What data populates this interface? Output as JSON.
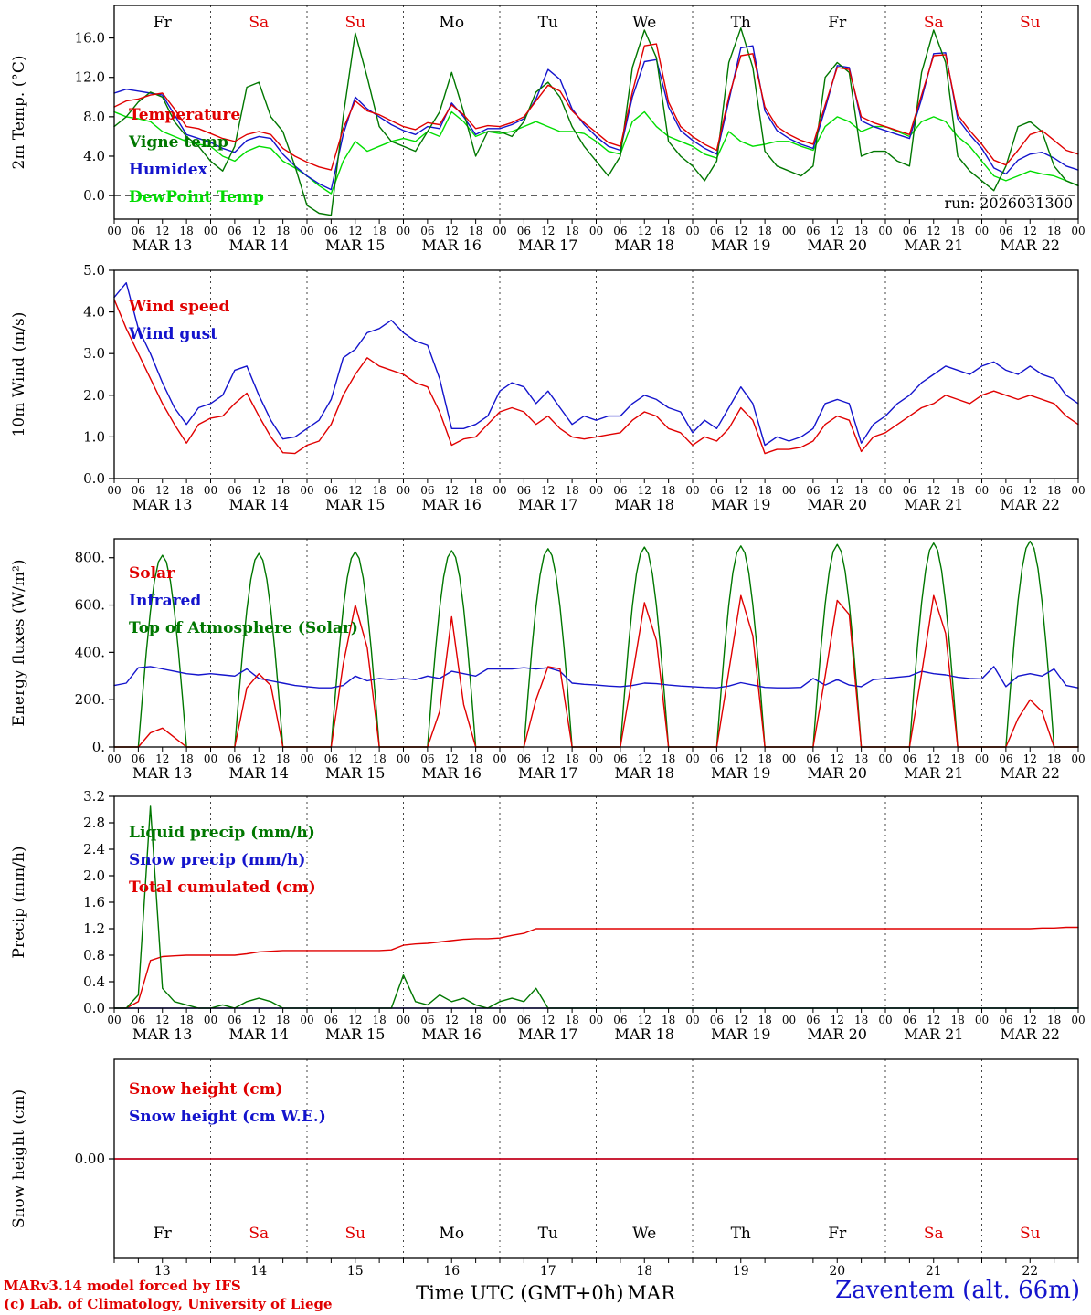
{
  "footer": {
    "model_line1": "MARv3.14 model forced by IFS",
    "model_line2": "(c) Lab. of Climatology, University of Liege",
    "xaxis_title": "Time UTC (GMT+0h)",
    "month_label": "MAR",
    "station": "Zaventem (alt. 66m)"
  },
  "colors": {
    "red": "#e00000",
    "blue": "#1414cc",
    "dark_green": "#007700",
    "light_green": "#00dd00",
    "black": "#000000"
  },
  "x_axis": {
    "hours": {
      "start": 0,
      "step": 3,
      "count": 81,
      "end": 240
    },
    "hour_ticks": [
      "00",
      "06",
      "12",
      "18"
    ],
    "days": [
      {
        "label": "MAR 13",
        "dow": "Fr",
        "date": "13",
        "weekend": false
      },
      {
        "label": "MAR 14",
        "dow": "Sa",
        "date": "14",
        "weekend": true
      },
      {
        "label": "MAR 15",
        "dow": "Su",
        "date": "15",
        "weekend": true
      },
      {
        "label": "MAR 16",
        "dow": "Mo",
        "date": "16",
        "weekend": false
      },
      {
        "label": "MAR 17",
        "dow": "Tu",
        "date": "17",
        "weekend": false
      },
      {
        "label": "MAR 18",
        "dow": "We",
        "date": "18",
        "weekend": false
      },
      {
        "label": "MAR 19",
        "dow": "Th",
        "date": "19",
        "weekend": false
      },
      {
        "label": "MAR 20",
        "dow": "Fr",
        "date": "20",
        "weekend": false
      },
      {
        "label": "MAR 21",
        "dow": "Sa",
        "date": "21",
        "weekend": true
      },
      {
        "label": "MAR 22",
        "dow": "Su",
        "date": "22",
        "weekend": true
      }
    ]
  },
  "chart_data": [
    {
      "name": "panel-2m-temp",
      "type": "line",
      "ylabel": "2m Temp. (°C)",
      "ylim": [
        -2.4,
        19.3
      ],
      "yticks": {
        "values": [
          0,
          4,
          8,
          12,
          16
        ],
        "labels": [
          "0.0",
          "4.0",
          "8.0",
          "12.0",
          "16.0"
        ]
      },
      "legend_offset": 125,
      "show_hour_labels": true,
      "show_top_day_names": true,
      "zero_dashed": true,
      "run_label": "run: 2026031300",
      "series": [
        {
          "name": "Temperature",
          "color": "#e00000",
          "values": [
            9.0,
            9.6,
            9.8,
            10.2,
            10.4,
            8.8,
            7.0,
            6.8,
            6.3,
            5.8,
            5.5,
            6.2,
            6.5,
            6.2,
            4.8,
            4.0,
            3.4,
            2.9,
            2.6,
            6.8,
            9.6,
            8.6,
            8.2,
            7.6,
            7.0,
            6.7,
            7.4,
            7.2,
            9.2,
            8.2,
            6.8,
            7.1,
            7.0,
            7.4,
            8.0,
            9.6,
            11.2,
            10.6,
            8.6,
            7.4,
            6.4,
            5.4,
            5.0,
            10.5,
            15.2,
            15.4,
            9.5,
            7.0,
            6.0,
            5.2,
            4.6,
            10.0,
            14.2,
            14.4,
            9.0,
            7.0,
            6.2,
            5.6,
            5.2,
            9.2,
            13.0,
            12.8,
            8.0,
            7.4,
            7.0,
            6.6,
            6.2,
            10.2,
            14.2,
            14.3,
            8.2,
            6.6,
            5.2,
            3.6,
            3.1,
            4.6,
            6.2,
            6.6,
            5.6,
            4.6,
            4.2
          ]
        },
        {
          "name": "Vigne temp",
          "color": "#007700",
          "values": [
            7.0,
            8.0,
            9.5,
            10.5,
            10.0,
            7.5,
            6.0,
            5.0,
            3.5,
            2.5,
            5.0,
            11.0,
            11.5,
            8.0,
            6.5,
            3.0,
            -1.0,
            -1.8,
            -2.0,
            8.0,
            16.5,
            12.0,
            7.0,
            5.5,
            5.0,
            4.5,
            6.5,
            8.5,
            12.5,
            8.5,
            4.0,
            6.5,
            6.5,
            6.0,
            7.5,
            10.5,
            11.5,
            10.0,
            7.0,
            5.0,
            3.5,
            2.0,
            4.0,
            13.0,
            16.8,
            14.0,
            5.5,
            4.0,
            3.0,
            1.5,
            3.5,
            13.5,
            17.0,
            13.0,
            4.5,
            3.0,
            2.5,
            2.0,
            3.0,
            12.0,
            13.5,
            12.5,
            4.0,
            4.5,
            4.5,
            3.5,
            3.0,
            12.5,
            16.8,
            13.5,
            4.0,
            2.5,
            1.5,
            0.5,
            3.0,
            7.0,
            7.5,
            6.5,
            3.0,
            1.5,
            1.0
          ]
        },
        {
          "name": "Humidex",
          "color": "#1414cc",
          "values": [
            10.4,
            10.8,
            10.6,
            10.4,
            10.2,
            8.2,
            6.2,
            5.8,
            5.4,
            4.8,
            4.4,
            5.6,
            6.0,
            5.8,
            4.2,
            3.0,
            2.0,
            1.2,
            0.6,
            6.2,
            10.0,
            8.8,
            8.0,
            7.2,
            6.6,
            6.2,
            7.0,
            6.8,
            9.4,
            8.0,
            6.2,
            6.8,
            6.8,
            7.2,
            7.8,
            9.8,
            12.8,
            11.8,
            8.8,
            7.2,
            6.0,
            5.0,
            4.6,
            10.0,
            13.6,
            13.8,
            9.0,
            6.6,
            5.6,
            4.8,
            4.2,
            9.6,
            15.0,
            15.2,
            8.6,
            6.6,
            5.8,
            5.2,
            4.8,
            8.8,
            13.2,
            13.0,
            7.6,
            7.0,
            6.6,
            6.2,
            5.8,
            9.8,
            14.4,
            14.5,
            7.8,
            6.2,
            4.8,
            2.8,
            2.2,
            3.6,
            4.2,
            4.4,
            3.8,
            3.0,
            2.6
          ]
        },
        {
          "name": "DewPoint Temp",
          "color": "#00dd00",
          "values": [
            8.5,
            8.0,
            7.8,
            7.5,
            6.5,
            6.0,
            5.5,
            5.2,
            5.0,
            4.0,
            3.5,
            4.5,
            5.0,
            4.8,
            3.5,
            2.8,
            2.0,
            1.0,
            0.2,
            3.5,
            5.5,
            4.5,
            5.0,
            5.5,
            5.8,
            5.5,
            6.5,
            6.0,
            8.5,
            7.5,
            6.0,
            6.5,
            6.3,
            6.5,
            7.0,
            7.5,
            7.0,
            6.5,
            6.5,
            6.3,
            5.5,
            4.5,
            4.2,
            7.5,
            8.5,
            7.0,
            6.0,
            5.5,
            5.0,
            4.2,
            3.8,
            6.5,
            5.5,
            5.0,
            5.2,
            5.5,
            5.5,
            5.0,
            4.6,
            7.0,
            8.0,
            7.5,
            6.5,
            7.0,
            7.0,
            6.5,
            6.0,
            7.5,
            8.0,
            7.5,
            6.0,
            5.0,
            3.5,
            2.0,
            1.5,
            2.0,
            2.5,
            2.2,
            2.0,
            1.5,
            1.0
          ]
        }
      ]
    },
    {
      "name": "panel-10m-wind",
      "type": "line",
      "ylabel": "10m Wind (m/s)",
      "ylim": [
        0,
        5
      ],
      "yticks": {
        "values": [
          0,
          1,
          2,
          3,
          4,
          5
        ],
        "labels": [
          "0.0",
          "1.0",
          "2.0",
          "3.0",
          "4.0",
          "5.0"
        ]
      },
      "legend_offset": 45,
      "show_hour_labels": true,
      "series": [
        {
          "name": "Wind speed",
          "color": "#e00000",
          "values": [
            4.3,
            3.6,
            3.0,
            2.4,
            1.8,
            1.3,
            0.85,
            1.3,
            1.45,
            1.5,
            1.8,
            2.05,
            1.5,
            1.0,
            0.62,
            0.6,
            0.8,
            0.9,
            1.3,
            2.0,
            2.5,
            2.9,
            2.7,
            2.6,
            2.5,
            2.3,
            2.2,
            1.6,
            0.8,
            0.95,
            1.0,
            1.3,
            1.6,
            1.7,
            1.6,
            1.3,
            1.5,
            1.2,
            1.0,
            0.95,
            1.0,
            1.05,
            1.1,
            1.4,
            1.6,
            1.5,
            1.2,
            1.1,
            0.8,
            1.0,
            0.9,
            1.2,
            1.7,
            1.4,
            0.6,
            0.7,
            0.7,
            0.75,
            0.9,
            1.3,
            1.5,
            1.4,
            0.65,
            1.0,
            1.1,
            1.3,
            1.5,
            1.7,
            1.8,
            2.0,
            1.9,
            1.8,
            2.0,
            2.1,
            2.0,
            1.9,
            2.0,
            1.9,
            1.8,
            1.5,
            1.3
          ]
        },
        {
          "name": "Wind gust",
          "color": "#1414cc",
          "values": [
            4.35,
            4.7,
            3.6,
            3.0,
            2.3,
            1.7,
            1.3,
            1.7,
            1.8,
            2.0,
            2.6,
            2.7,
            2.0,
            1.4,
            0.95,
            1.0,
            1.2,
            1.4,
            1.9,
            2.9,
            3.1,
            3.5,
            3.6,
            3.8,
            3.5,
            3.3,
            3.2,
            2.4,
            1.2,
            1.2,
            1.3,
            1.5,
            2.1,
            2.3,
            2.2,
            1.8,
            2.1,
            1.7,
            1.3,
            1.5,
            1.4,
            1.5,
            1.5,
            1.8,
            2.0,
            1.9,
            1.7,
            1.6,
            1.1,
            1.4,
            1.2,
            1.7,
            2.2,
            1.8,
            0.8,
            1.0,
            0.9,
            1.0,
            1.2,
            1.8,
            1.9,
            1.8,
            0.85,
            1.3,
            1.5,
            1.8,
            2.0,
            2.3,
            2.5,
            2.7,
            2.6,
            2.5,
            2.7,
            2.8,
            2.6,
            2.5,
            2.7,
            2.5,
            2.4,
            2.0,
            1.8
          ]
        }
      ]
    },
    {
      "name": "panel-energy-fluxes",
      "type": "line",
      "ylabel": "Energy fluxes (W/m²)",
      "ylim": [
        0,
        880
      ],
      "yticks": {
        "values": [
          0,
          200,
          400,
          600,
          800
        ],
        "labels": [
          "0.",
          "200.",
          "400.",
          "600.",
          "800."
        ]
      },
      "legend_offset": 43,
      "show_hour_labels": true,
      "series": [
        {
          "name": "Solar",
          "color": "#e00000",
          "values": [
            0,
            0,
            0,
            60,
            80,
            40,
            0,
            0,
            0,
            0,
            0,
            250,
            310,
            260,
            0,
            0,
            0,
            0,
            0,
            350,
            600,
            420,
            0,
            0,
            0,
            0,
            0,
            150,
            550,
            180,
            0,
            0,
            0,
            0,
            0,
            200,
            340,
            330,
            0,
            0,
            0,
            0,
            0,
            300,
            610,
            450,
            0,
            0,
            0,
            0,
            0,
            320,
            640,
            470,
            0,
            0,
            0,
            0,
            0,
            300,
            620,
            560,
            0,
            0,
            0,
            0,
            0,
            310,
            640,
            480,
            0,
            0,
            0,
            0,
            0,
            120,
            200,
            150,
            0,
            0,
            0
          ]
        },
        {
          "name": "Infrared",
          "color": "#1414cc",
          "values": [
            260,
            270,
            335,
            340,
            330,
            320,
            310,
            305,
            310,
            305,
            300,
            330,
            290,
            280,
            270,
            260,
            255,
            250,
            250,
            260,
            300,
            280,
            290,
            285,
            290,
            285,
            300,
            290,
            320,
            310,
            300,
            330,
            330,
            330,
            335,
            330,
            335,
            320,
            270,
            265,
            262,
            258,
            255,
            260,
            270,
            268,
            262,
            258,
            255,
            252,
            250,
            258,
            272,
            262,
            252,
            250,
            250,
            252,
            290,
            262,
            285,
            262,
            255,
            285,
            290,
            295,
            300,
            320,
            310,
            305,
            295,
            290,
            288,
            340,
            255,
            300,
            310,
            300,
            330,
            260,
            250
          ]
        },
        {
          "name": "Top of Atmosphere (Solar)",
          "color": "#007700",
          "toa_peaks": [
            810,
            818,
            825,
            830,
            838,
            845,
            850,
            856,
            862,
            870
          ]
        }
      ]
    },
    {
      "name": "panel-precip",
      "type": "line",
      "ylabel": "Precip (mm/h)",
      "ylim": [
        0,
        3.2
      ],
      "yticks": {
        "values": [
          0,
          0.4,
          0.8,
          1.2,
          1.6,
          2.0,
          2.4,
          2.8,
          3.2
        ],
        "labels": [
          "0.0",
          "0.4",
          "0.8",
          "1.2",
          "1.6",
          "2.0",
          "2.4",
          "2.8",
          "3.2"
        ]
      },
      "legend_offset": 45,
      "show_hour_labels": true,
      "series": [
        {
          "name": "Liquid precip (mm/h)",
          "color": "#007700",
          "values": [
            0,
            0,
            0.2,
            3.05,
            0.3,
            0.1,
            0.05,
            0,
            0,
            0.05,
            0,
            0.1,
            0.15,
            0.1,
            0,
            0,
            0,
            0,
            0,
            0,
            0,
            0,
            0,
            0,
            0.5,
            0.1,
            0.05,
            0.2,
            0.1,
            0.15,
            0.05,
            0,
            0.1,
            0.15,
            0.1,
            0.3,
            0,
            0,
            0,
            0,
            0,
            0,
            0,
            0,
            0,
            0,
            0,
            0,
            0,
            0,
            0,
            0,
            0,
            0,
            0,
            0,
            0,
            0,
            0,
            0,
            0,
            0,
            0,
            0,
            0,
            0,
            0,
            0,
            0,
            0,
            0,
            0,
            0,
            0,
            0,
            0,
            0,
            0,
            0,
            0,
            0
          ]
        },
        {
          "name": "Snow precip (mm/h)",
          "color": "#1414cc",
          "constant": 0
        },
        {
          "name": "Total cumulated (cm)",
          "color": "#e00000",
          "values": [
            0,
            0,
            0.1,
            0.72,
            0.78,
            0.79,
            0.8,
            0.8,
            0.8,
            0.8,
            0.8,
            0.82,
            0.85,
            0.86,
            0.87,
            0.87,
            0.87,
            0.87,
            0.87,
            0.87,
            0.87,
            0.87,
            0.87,
            0.88,
            0.95,
            0.97,
            0.98,
            1.0,
            1.02,
            1.04,
            1.05,
            1.05,
            1.06,
            1.1,
            1.13,
            1.2,
            1.2,
            1.2,
            1.2,
            1.2,
            1.2,
            1.2,
            1.2,
            1.2,
            1.2,
            1.2,
            1.2,
            1.2,
            1.2,
            1.2,
            1.2,
            1.2,
            1.2,
            1.2,
            1.2,
            1.2,
            1.2,
            1.2,
            1.2,
            1.2,
            1.2,
            1.2,
            1.2,
            1.2,
            1.2,
            1.2,
            1.2,
            1.2,
            1.2,
            1.2,
            1.2,
            1.2,
            1.2,
            1.2,
            1.2,
            1.2,
            1.2,
            1.21,
            1.21,
            1.22,
            1.22
          ]
        }
      ]
    },
    {
      "name": "panel-snow-height",
      "type": "line",
      "ylabel": "Snow height (cm)",
      "ylim": [
        -1,
        1
      ],
      "yticks": {
        "values": [
          0
        ],
        "labels": [
          "0.00"
        ]
      },
      "legend_offset": 38,
      "show_hour_labels": false,
      "show_bottom_day_names": true,
      "show_dates_below": true,
      "series": [
        {
          "name": "Snow height (cm)",
          "color": "#e00000",
          "constant": 0
        },
        {
          "name": "Snow height (cm W.E.)",
          "color": "#1414cc",
          "constant": 0
        }
      ]
    }
  ]
}
